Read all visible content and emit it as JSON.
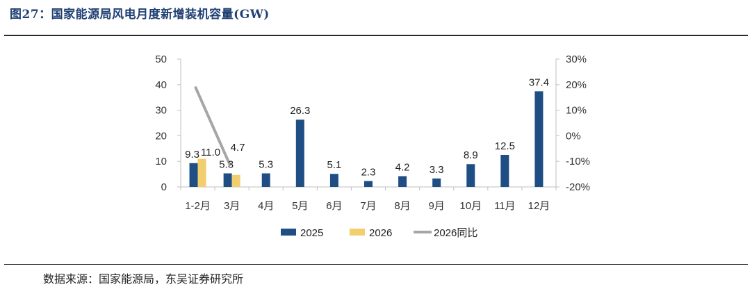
{
  "title": "图27：国家能源局风电月度新增装机容量(GW)",
  "source": "数据来源：国家能源局，东吴证券研究所",
  "colors": {
    "s2025": "#1f4e84",
    "s2026": "#f2cf6e",
    "yoy": "#a6a6a6"
  },
  "chart_data": {
    "type": "bar",
    "categories": [
      "1-2月",
      "3月",
      "4月",
      "5月",
      "6月",
      "7月",
      "8月",
      "9月",
      "10月",
      "11月",
      "12月"
    ],
    "series": [
      {
        "name": "2025",
        "kind": "bar",
        "axis": "left",
        "values": [
          9.3,
          5.3,
          5.3,
          26.3,
          5.1,
          2.3,
          4.2,
          3.3,
          8.9,
          12.5,
          37.4
        ]
      },
      {
        "name": "2026",
        "kind": "bar",
        "axis": "left",
        "values": [
          11.0,
          4.7,
          null,
          null,
          null,
          null,
          null,
          null,
          null,
          null,
          null
        ]
      },
      {
        "name": "2026同比",
        "kind": "line",
        "axis": "right",
        "values": [
          18.8,
          -11.3,
          null,
          null,
          null,
          null,
          null,
          null,
          null,
          null,
          null
        ]
      }
    ],
    "data_labels": {
      "2025": [
        "9.3",
        "5.3",
        "5.3",
        "26.3",
        "5.1",
        "2.3",
        "4.2",
        "3.3",
        "8.9",
        "12.5",
        "37.4"
      ],
      "2026": [
        "11.0",
        "4.7"
      ]
    },
    "ylim": [
      0,
      50
    ],
    "y_ticks": [
      "0",
      "10",
      "20",
      "30",
      "40",
      "50"
    ],
    "y2lim": [
      -20,
      30
    ],
    "y2_ticks": [
      "-20%",
      "-10%",
      "0%",
      "10%",
      "20%",
      "30%"
    ],
    "grid": false,
    "legend_position": "bottom"
  }
}
